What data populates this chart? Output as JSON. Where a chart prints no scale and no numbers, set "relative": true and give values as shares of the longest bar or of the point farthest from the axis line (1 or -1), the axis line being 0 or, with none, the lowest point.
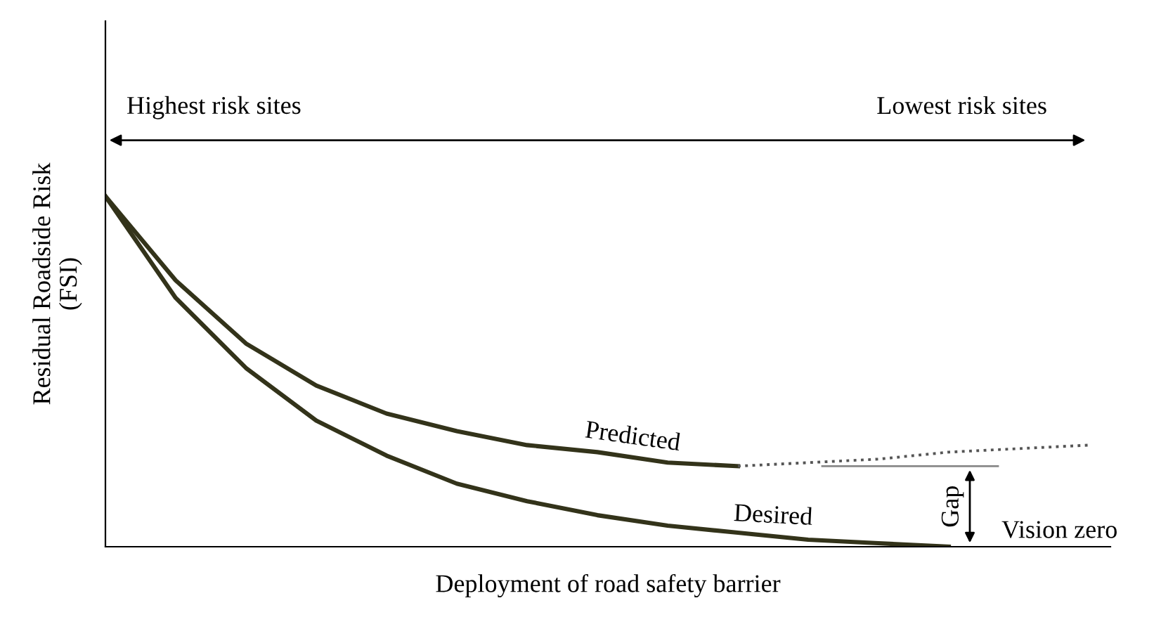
{
  "chart_data": {
    "type": "line",
    "relative": true,
    "xlabel": "Deployment of road safety barrier",
    "ylabel": "Residual Roadside Risk\n(FSI)",
    "categories": [
      null,
      null,
      null,
      null,
      null,
      null,
      null,
      null,
      null,
      null,
      null,
      null,
      null,
      null,
      null
    ],
    "series": [
      {
        "name": "Predicted",
        "color": "#33331a",
        "line_style": "solid",
        "values": [
          1.0,
          0.76,
          0.58,
          0.46,
          0.38,
          0.33,
          0.29,
          0.27,
          0.24,
          0.23,
          null,
          null,
          null,
          null,
          null
        ]
      },
      {
        "color": "#555555",
        "line_style": "dotted",
        "values": [
          null,
          null,
          null,
          null,
          null,
          null,
          null,
          null,
          null,
          0.23,
          0.24,
          0.25,
          0.27,
          0.28,
          0.29
        ]
      },
      {
        "name": "Desired",
        "color": "#33331a",
        "line_style": "solid",
        "values": [
          1.0,
          0.71,
          0.51,
          0.36,
          0.26,
          0.18,
          0.13,
          0.09,
          0.06,
          0.04,
          0.02,
          0.01,
          0.0,
          null,
          null
        ]
      }
    ],
    "ref_lines": [
      {
        "axis": "y",
        "value": 0.23,
        "label": "Gap",
        "color": "#888888"
      }
    ],
    "annotations": [
      "Highest risk sites",
      "Lowest risk sites",
      "Vision zero"
    ],
    "marker": "none",
    "legend": false
  }
}
